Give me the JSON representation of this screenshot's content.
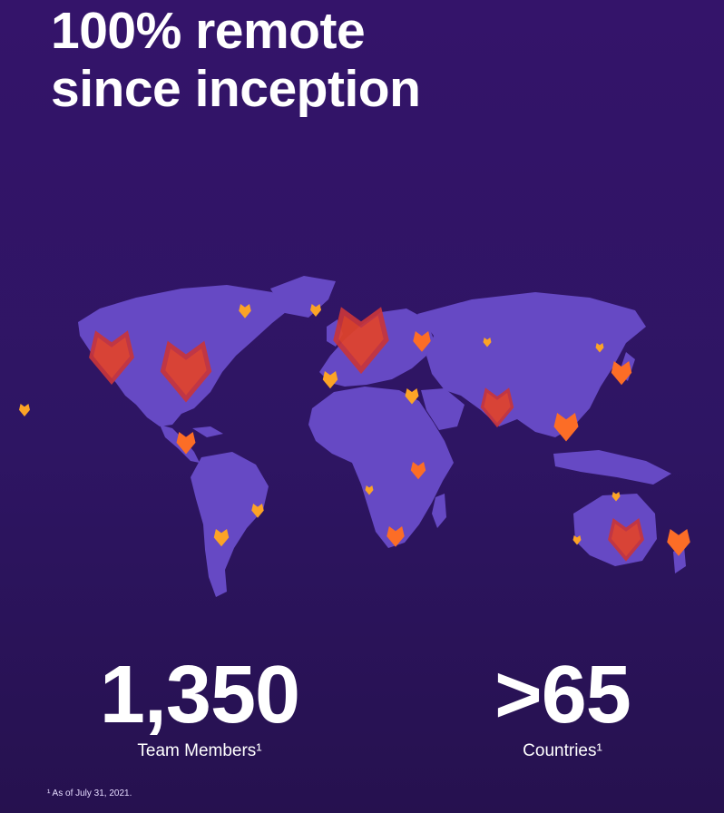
{
  "headline": {
    "line1": "100% remote",
    "line2": "since inception"
  },
  "stats": {
    "team": {
      "value": "1,350",
      "label": "Team Members¹"
    },
    "countries": {
      "value": ">65",
      "label": "Countries¹"
    }
  },
  "footnote": "¹ As of July 31, 2021.",
  "colors": {
    "background": "#2e1563",
    "land": "#6649c4",
    "marker_large": "#e2432a",
    "marker_medium": "#fc6d26",
    "marker_small": "#fca326"
  },
  "icons": {
    "map_marker": "tanuki-logo-icon"
  }
}
